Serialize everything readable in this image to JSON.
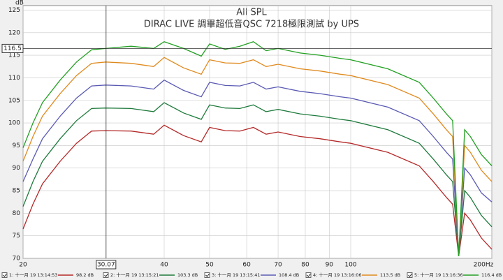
{
  "chart_data": {
    "type": "line",
    "title": "All SPL",
    "subtitle": "DIRAC LIVE 調畢超低音QSC 7218極限測試 by UPS",
    "y_label": "dB",
    "x_scale": "log",
    "grid": true,
    "xlim": [
      20,
      200
    ],
    "ylim": [
      70,
      126
    ],
    "xticks": [
      20,
      40,
      50,
      60,
      70,
      80,
      90,
      100,
      {
        "value": 200,
        "label": "200Hz"
      }
    ],
    "yticks": [
      70,
      75,
      80,
      85,
      90,
      95,
      100,
      105,
      110,
      115,
      120,
      125
    ],
    "cursor": {
      "x": 30.07,
      "y": 116.5
    },
    "x": [
      20,
      21,
      22,
      24,
      26,
      28,
      30,
      34,
      38,
      40,
      44,
      48,
      50,
      54,
      58,
      62,
      66,
      70,
      78,
      86,
      95,
      100,
      120,
      140,
      150,
      160,
      165,
      170,
      175,
      180,
      190,
      200
    ],
    "series": [
      {
        "name": "1: 十一月 19 13:14:53",
        "color": "#b42828",
        "level": {
          "value": 98.2,
          "label": "98.2 dB"
        },
        "values": [
          76.5,
          82,
          86.5,
          91.5,
          95.5,
          98.2,
          98.3,
          98.2,
          97.5,
          99.5,
          97.2,
          95.8,
          99,
          98.3,
          98.2,
          99,
          97.5,
          98,
          97,
          96.5,
          95.8,
          95.5,
          93.5,
          90.5,
          87,
          83.5,
          82,
          70.5,
          80,
          78.5,
          74.5,
          72
        ]
      },
      {
        "name": "2: 十一月 19 13:15:21",
        "color": "#1e7a3c",
        "level": {
          "value": 103.3,
          "label": "103.3 dB"
        },
        "values": [
          81.5,
          87,
          91.5,
          96.5,
          100.5,
          103.2,
          103.3,
          103.2,
          102.5,
          104.5,
          102.2,
          100.8,
          104,
          103.3,
          103.2,
          104,
          102.5,
          103,
          102,
          101.5,
          100.8,
          100.5,
          98.5,
          95.5,
          92,
          88.5,
          87,
          70.5,
          85,
          83.5,
          79.5,
          77
        ]
      },
      {
        "name": "3: 十一月 19 13:15:41",
        "color": "#5a5ab4",
        "level": {
          "value": 108.4,
          "label": "108.4 dB"
        },
        "values": [
          87,
          92,
          96.5,
          101.5,
          105.5,
          108.2,
          108.4,
          108.2,
          107.5,
          109.5,
          107.2,
          105.8,
          109,
          108.3,
          108.2,
          109,
          107.5,
          108,
          107,
          106.5,
          105.8,
          105.5,
          103.5,
          100.5,
          97,
          93.5,
          92,
          70.5,
          90,
          88.5,
          84.5,
          82.5
        ]
      },
      {
        "name": "4: 十一月 19 13:16:06",
        "color": "#e08a1e",
        "level": {
          "value": 113.5,
          "label": "113.5 dB"
        },
        "values": [
          91.5,
          97,
          101.5,
          106.5,
          110.5,
          113.2,
          113.5,
          113.2,
          112.5,
          114.5,
          112.2,
          110.8,
          114,
          113.3,
          113.2,
          114,
          112.5,
          113,
          112,
          111.5,
          110.8,
          110.5,
          108.5,
          105.5,
          102,
          98.5,
          97,
          70.5,
          95,
          93.5,
          89.5,
          87
        ]
      },
      {
        "name": "5: 十一月 19 13:16:36",
        "color": "#22a022",
        "level": {
          "value": 116.4,
          "label": "116.4 dB"
        },
        "values": [
          94.5,
          100,
          104.5,
          109.5,
          113.5,
          116.2,
          116.5,
          117,
          116.5,
          118,
          116.5,
          114.8,
          117.5,
          116.3,
          117,
          118,
          116,
          116.5,
          115.5,
          115,
          114.3,
          114,
          112,
          109,
          105.5,
          102,
          100.5,
          70.5,
          98.5,
          97,
          93,
          90.5
        ]
      }
    ]
  }
}
